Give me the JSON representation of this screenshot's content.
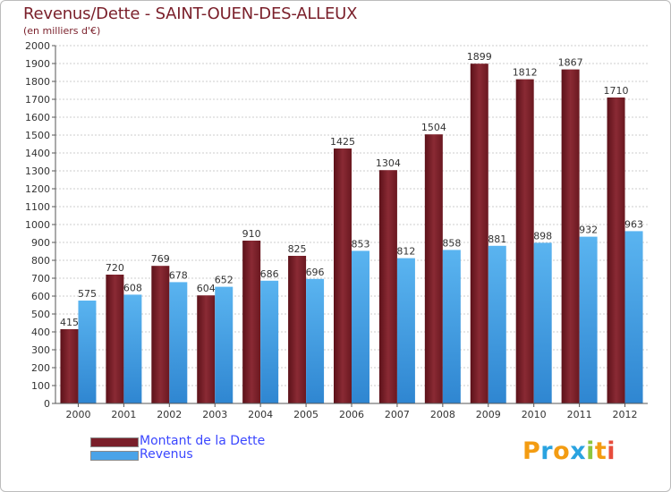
{
  "title": "Revenus/Dette - SAINT-OUEN-DES-ALLEUX",
  "subtitle": "(en milliers d'€)",
  "colors": {
    "debt": "#7a1f2a",
    "revenue": "#4aa3e8",
    "title": "#7a1f2a",
    "legend_text": "#3b47ff",
    "grid": "#cccccc"
  },
  "legend": {
    "debt_label": "Montant de la Dette",
    "revenue_label": "Revenus"
  },
  "logo": {
    "letters": [
      "P",
      "r",
      "o",
      "x",
      "i",
      "t",
      "i"
    ],
    "colors": [
      "#f39c12",
      "#2aa3e0",
      "#f39c12",
      "#2aa3e0",
      "#8cc63f",
      "#f39c12",
      "#e74c3c"
    ]
  },
  "chart_data": {
    "type": "bar",
    "title": "Revenus/Dette - SAINT-OUEN-DES-ALLEUX",
    "ylabel": "(en milliers d'€)",
    "xlabel": "",
    "ylim": [
      0,
      2000
    ],
    "ytick_step": 100,
    "grid": true,
    "legend_position": "bottom-left",
    "categories": [
      "2000",
      "2001",
      "2002",
      "2003",
      "2004",
      "2005",
      "2006",
      "2007",
      "2008",
      "2009",
      "2010",
      "2011",
      "2012"
    ],
    "series": [
      {
        "name": "Montant de la Dette",
        "values": [
          415,
          720,
          769,
          604,
          910,
          825,
          1425,
          1304,
          1504,
          1899,
          1812,
          1867,
          1710
        ]
      },
      {
        "name": "Revenus",
        "values": [
          575,
          608,
          678,
          652,
          686,
          696,
          853,
          812,
          858,
          881,
          898,
          932,
          963
        ]
      }
    ]
  }
}
